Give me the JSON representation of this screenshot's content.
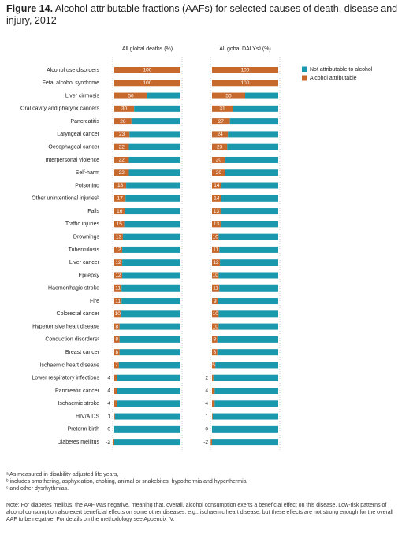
{
  "chart_data": {
    "type": "bar",
    "orientation": "horizontal",
    "stacked": true,
    "figure_label": "Figure 14.",
    "title": "Alcohol-attributable fractions (AAFs) for selected causes of death, disease and injury, 2012",
    "categories": [
      "Alcohol use disorders",
      "Fetal alcohol syndrome",
      "Liver cirrhosis",
      "Oral cavity and pharynx cancers",
      "Pancreatitis",
      "Laryngeal cancer",
      "Oesophageal cancer",
      "Interpersonal violence",
      "Self-harm",
      "Poisoning",
      "Other unintentional injuriesᵇ",
      "Falls",
      "Traffic injuries",
      "Drownings",
      "Tuberculosis",
      "Liver cancer",
      "Epilepsy",
      "Haemorrhagic stroke",
      "Fire",
      "Colorectal cancer",
      "Hypertensive heart disease",
      "Conduction disordersᶜ",
      "Breast cancer",
      "Ischaemic heart disease",
      "Lower respiratory infections",
      "Pancreatic cancer",
      "Ischaemic stroke",
      "HIV/AIDS",
      "Preterm birth",
      "Diabetes mellitus"
    ],
    "xlim": [
      0,
      100
    ],
    "legend": [
      {
        "name": "Not attributable to alcohol",
        "color": "#1a98ad"
      },
      {
        "name": "Alcohol attributable",
        "color": "#c7692d"
      }
    ],
    "panels": [
      {
        "subtitle": "All global deaths (%)",
        "series": [
          {
            "values": [
              0,
              0,
              50,
              70,
              74,
              77,
              78,
              78,
              78,
              82,
              83,
              84,
              85,
              87,
              88,
              88,
              88,
              89,
              89,
              90,
              92,
              92,
              92,
              93,
              96,
              96,
              96,
              99,
              100,
              100
            ]
          },
          {
            "values": [
              100,
              100,
              50,
              30,
              26,
              23,
              22,
              22,
              22,
              18,
              17,
              16,
              15,
              13,
              12,
              12,
              12,
              11,
              11,
              10,
              8,
              8,
              8,
              7,
              4,
              4,
              4,
              1,
              0,
              -2
            ]
          }
        ]
      },
      {
        "subtitle": "All gobal DALYsᵃ (%)",
        "series": [
          {
            "values": [
              0,
              0,
              50,
              69,
              73,
              76,
              77,
              80,
              80,
              86,
              86,
              87,
              87,
              90,
              89,
              88,
              90,
              89,
              91,
              90,
              90,
              92,
              92,
              95,
              98,
              96,
              96,
              99,
              100,
              100
            ]
          },
          {
            "values": [
              100,
              100,
              50,
              31,
              27,
              24,
              23,
              20,
              20,
              14,
              14,
              13,
              13,
              10,
              11,
              12,
              10,
              11,
              9,
              10,
              10,
              8,
              8,
              5,
              2,
              4,
              4,
              1,
              0,
              -2
            ]
          }
        ]
      }
    ]
  },
  "footnotes": [
    "ᵃ As measured in disability-adjusted life years,",
    "ᵇ includes smothering, asphyxiation, choking, animal or snakebites, hypothermia and hyperthermia,",
    "ᶜ and other dysrhythmias."
  ],
  "note": "Note: For diabetes mellitus, the AAF was negative, meaning that, overall, alcohol consumption exerts a beneficial effect on this disease. Low-risk patterns of alcohol consumption also exert beneficial effects on some other diseases, e.g., ischaemic heart disease, but these effects are not strong enough for the overall AAF to be negative. For details on the methodology see Appendix IV."
}
